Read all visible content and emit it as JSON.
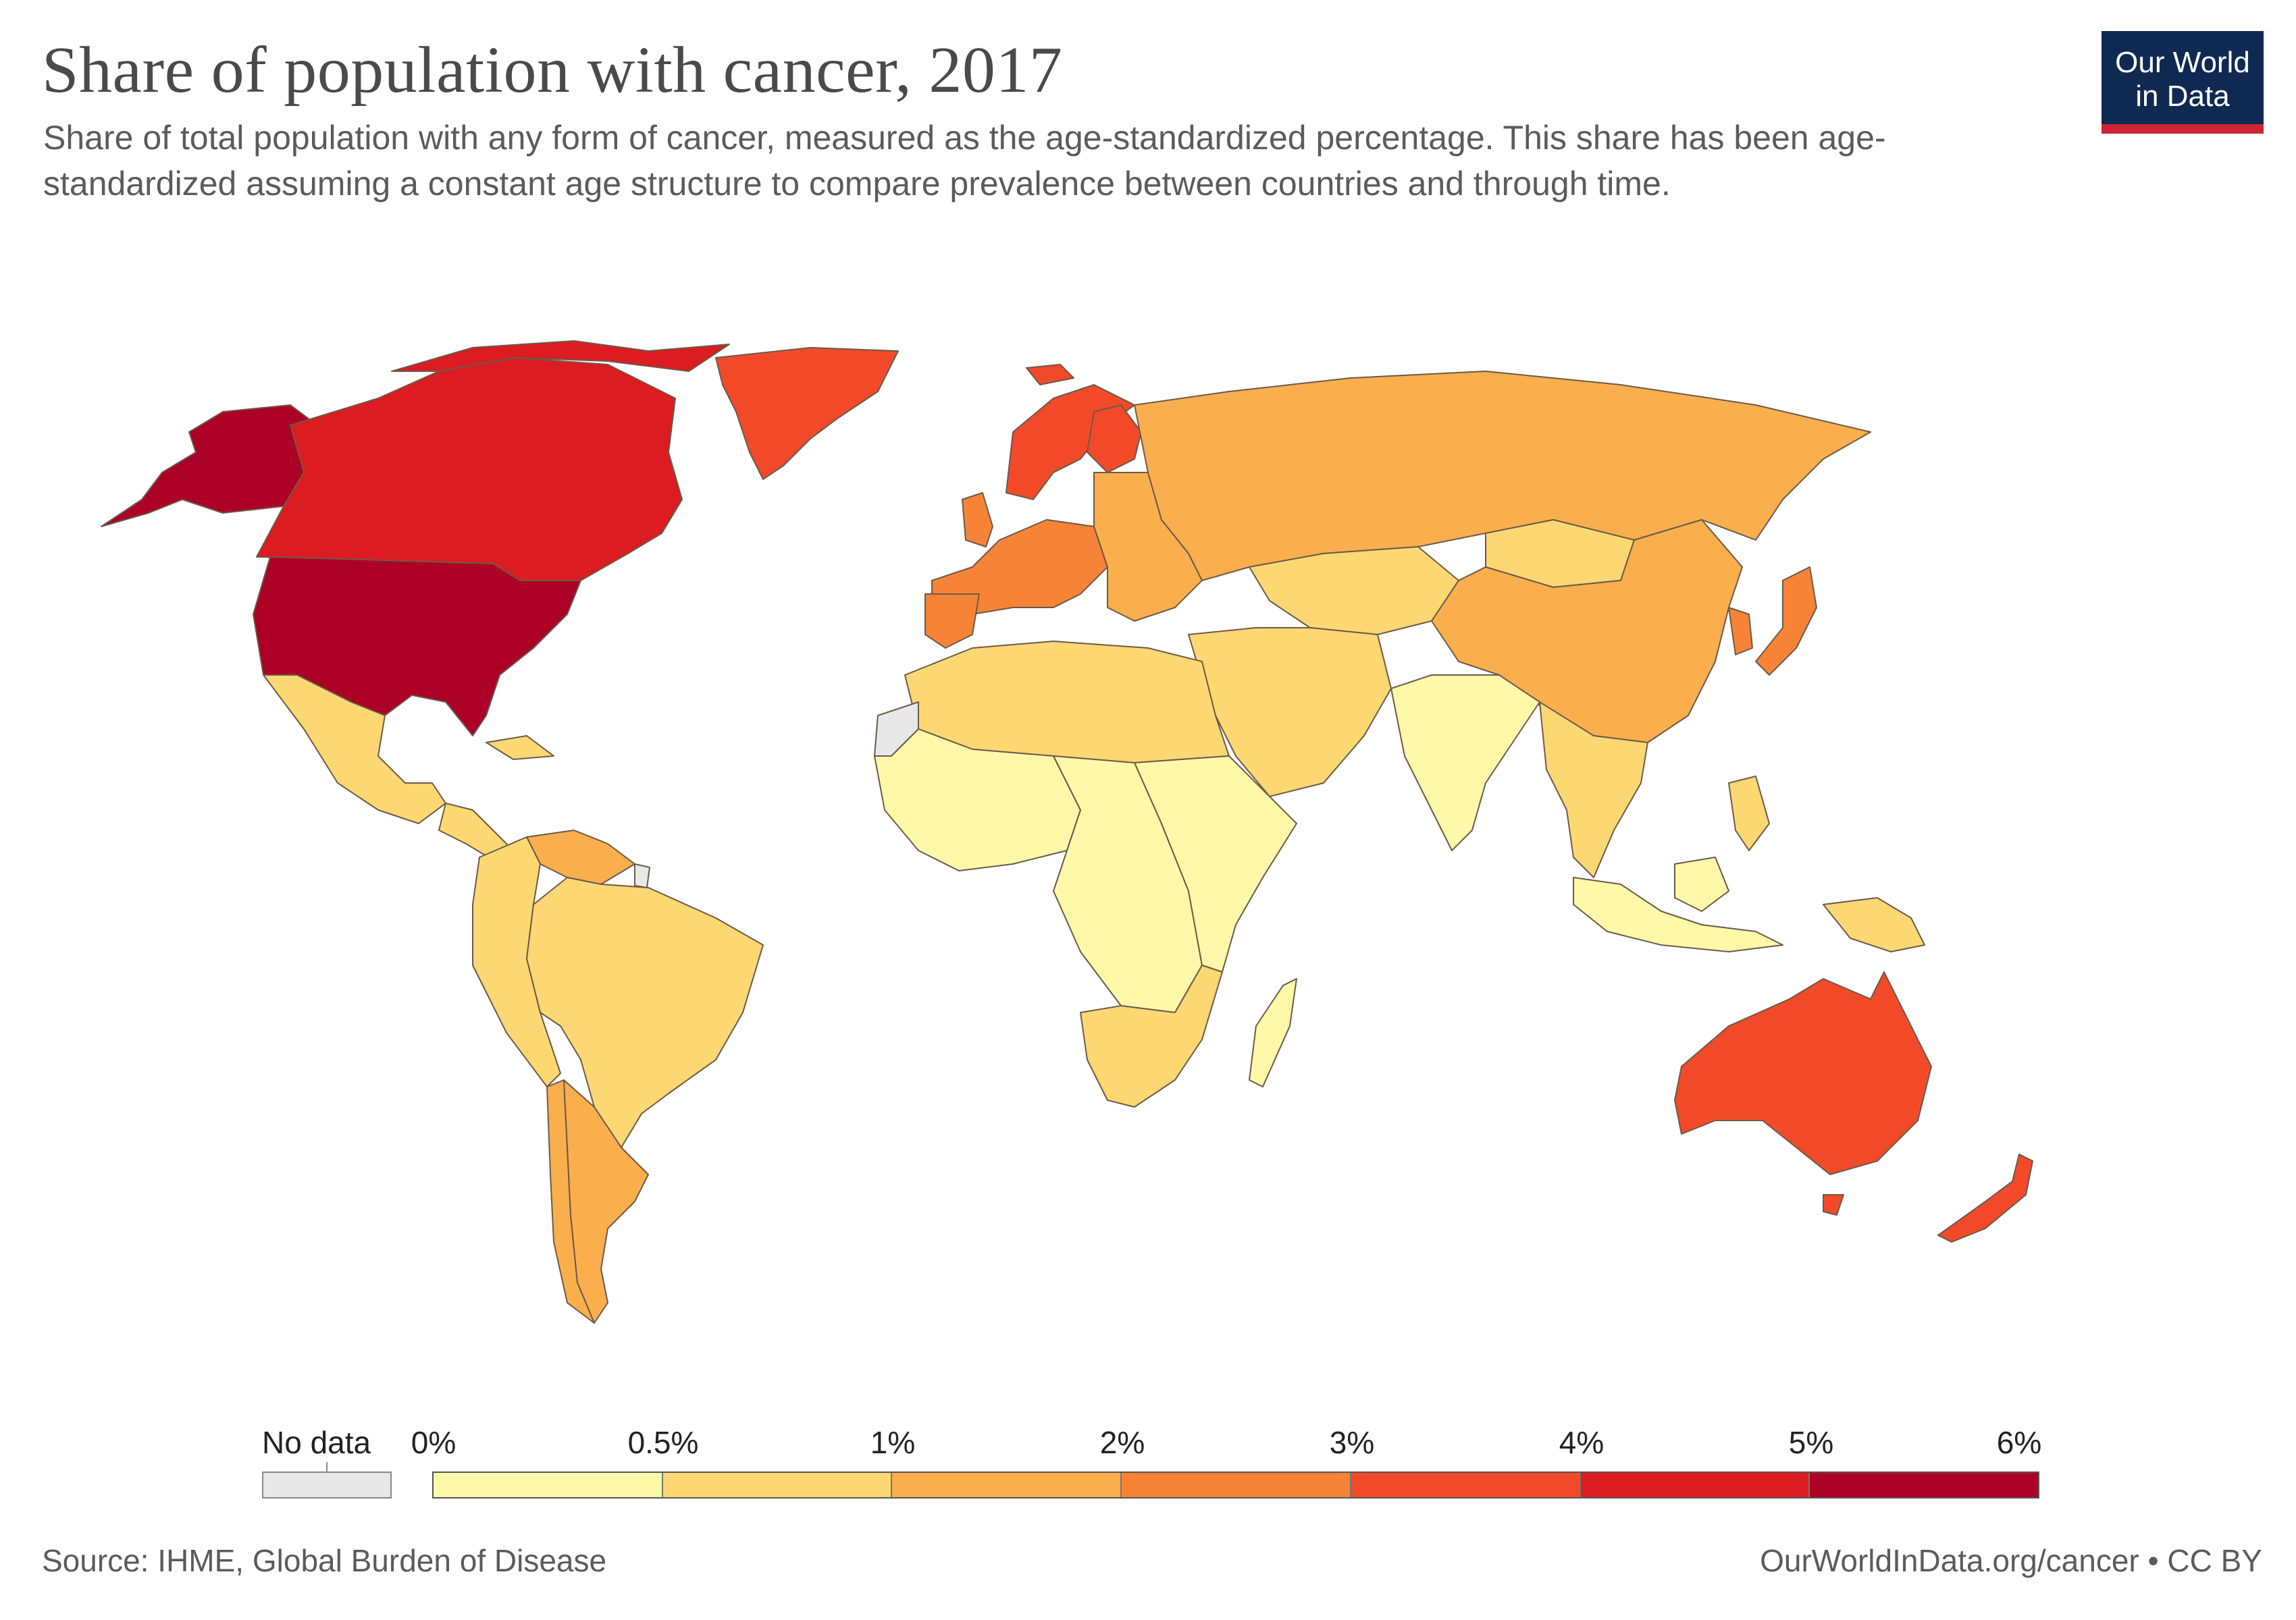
{
  "header": {
    "title": "Share of population with cancer, 2017",
    "subtitle": "Share of total population with any form of cancer, measured as the age-standardized percentage. This share has been age-standardized assuming a constant age structure to compare prevalence between countries and through time."
  },
  "logo": {
    "line1": "Our World",
    "line2": "in Data"
  },
  "chart_data": {
    "type": "choropleth",
    "title": "Share of population with cancer, 2017",
    "unit": "%",
    "legend": {
      "no_data_label": "No data",
      "no_data_color": "#e8e8e8",
      "tick_labels": [
        "0%",
        "0.5%",
        "1%",
        "2%",
        "3%",
        "4%",
        "5%",
        "6%"
      ],
      "bins": [
        {
          "range": "0%–0.5%",
          "color": "#fff8a8"
        },
        {
          "range": "0.5%–1%",
          "color": "#fdd772"
        },
        {
          "range": "1%–2%",
          "color": "#fbae4c"
        },
        {
          "range": "2%–3%",
          "color": "#f78436"
        },
        {
          "range": "3%–4%",
          "color": "#f24a29"
        },
        {
          "range": "4%–5%",
          "color": "#dc1c20"
        },
        {
          "range": "5%–6%",
          "color": "#ad0026"
        }
      ]
    },
    "regions": [
      {
        "name": "United States",
        "bin": "5%–6%"
      },
      {
        "name": "Alaska",
        "bin": "5%–6%"
      },
      {
        "name": "Canada",
        "bin": "4%–5%"
      },
      {
        "name": "Greenland",
        "bin": "3%–4%"
      },
      {
        "name": "Australia",
        "bin": "3%–4%"
      },
      {
        "name": "New Zealand",
        "bin": "3%–4%"
      },
      {
        "name": "Western Europe",
        "bin": "2%–3%"
      },
      {
        "name": "Scandinavia",
        "bin": "3%–4%"
      },
      {
        "name": "Japan",
        "bin": "2%–3%"
      },
      {
        "name": "South Korea",
        "bin": "2%–3%"
      },
      {
        "name": "Eastern Europe",
        "bin": "1%–2%"
      },
      {
        "name": "Russia",
        "bin": "1%–2%"
      },
      {
        "name": "China",
        "bin": "1%–2%"
      },
      {
        "name": "Argentina",
        "bin": "1%–2%"
      },
      {
        "name": "Chile",
        "bin": "1%–2%"
      },
      {
        "name": "Venezuela",
        "bin": "1%–2%"
      },
      {
        "name": "Brazil",
        "bin": "0.5%–1%"
      },
      {
        "name": "Mexico",
        "bin": "0.5%–1%"
      },
      {
        "name": "Andes",
        "bin": "0.5%–1%"
      },
      {
        "name": "Central Asia",
        "bin": "0.5%–1%"
      },
      {
        "name": "Mongolia",
        "bin": "0.5%–1%"
      },
      {
        "name": "Middle East",
        "bin": "0.5%–1%"
      },
      {
        "name": "North Africa",
        "bin": "0.5%–1%"
      },
      {
        "name": "Southern Africa",
        "bin": "0.5%–1%"
      },
      {
        "name": "Southeast Asia",
        "bin": "0.5%–1%"
      },
      {
        "name": "Papua New Guinea",
        "bin": "0.5%–1%"
      },
      {
        "name": "West Africa",
        "bin": "0%–0.5%"
      },
      {
        "name": "Central Africa",
        "bin": "0%–0.5%"
      },
      {
        "name": "East Africa",
        "bin": "0%–0.5%"
      },
      {
        "name": "Madagascar",
        "bin": "0%–0.5%"
      },
      {
        "name": "India",
        "bin": "0%–0.5%"
      },
      {
        "name": "Indonesia",
        "bin": "0%–0.5%"
      },
      {
        "name": "Western Sahara",
        "bin": "No data"
      },
      {
        "name": "French Guiana",
        "bin": "No data"
      }
    ]
  },
  "footer": {
    "source": "Source: IHME, Global Burden of Disease",
    "url_license": "OurWorldInData.org/cancer • CC BY"
  }
}
